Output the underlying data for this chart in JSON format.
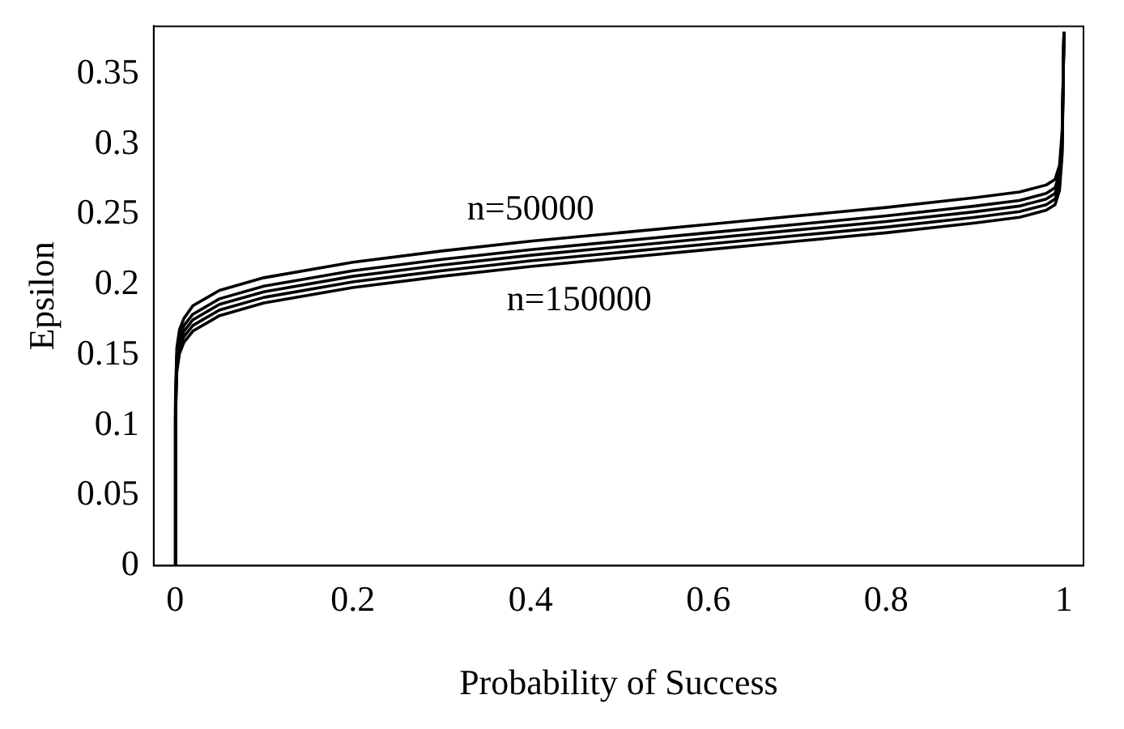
{
  "chart_data": {
    "type": "line",
    "xlabel": "Probability of Success",
    "ylabel": "Epsilon",
    "x": [
      0,
      0.0005,
      0.002,
      0.005,
      0.01,
      0.02,
      0.05,
      0.1,
      0.2,
      0.3,
      0.4,
      0.5,
      0.6,
      0.7,
      0.8,
      0.9,
      0.95,
      0.98,
      0.99,
      0.995,
      0.998,
      1
    ],
    "series": [
      {
        "name": "n=50000",
        "color": "#000000",
        "values": [
          0,
          0.12,
          0.155,
          0.168,
          0.176,
          0.185,
          0.196,
          0.205,
          0.216,
          0.224,
          0.231,
          0.237,
          0.243,
          0.249,
          0.255,
          0.262,
          0.266,
          0.271,
          0.275,
          0.285,
          0.31,
          0.38
        ]
      },
      {
        "color": "#000000",
        "values": [
          0,
          0.115,
          0.15,
          0.163,
          0.171,
          0.179,
          0.19,
          0.199,
          0.21,
          0.218,
          0.225,
          0.231,
          0.237,
          0.243,
          0.249,
          0.256,
          0.26,
          0.265,
          0.269,
          0.279,
          0.305,
          0.38
        ]
      },
      {
        "color": "#000000",
        "values": [
          0,
          0.111,
          0.146,
          0.159,
          0.167,
          0.175,
          0.186,
          0.195,
          0.206,
          0.214,
          0.221,
          0.227,
          0.233,
          0.239,
          0.245,
          0.252,
          0.256,
          0.261,
          0.265,
          0.275,
          0.301,
          0.38
        ]
      },
      {
        "color": "#000000",
        "values": [
          0,
          0.107,
          0.142,
          0.155,
          0.163,
          0.171,
          0.182,
          0.191,
          0.202,
          0.21,
          0.217,
          0.223,
          0.229,
          0.235,
          0.241,
          0.248,
          0.252,
          0.257,
          0.261,
          0.271,
          0.297,
          0.38
        ]
      },
      {
        "name": "n=150000",
        "color": "#000000",
        "values": [
          0,
          0.103,
          0.138,
          0.151,
          0.159,
          0.167,
          0.178,
          0.187,
          0.198,
          0.206,
          0.213,
          0.219,
          0.225,
          0.231,
          0.237,
          0.244,
          0.248,
          0.253,
          0.257,
          0.267,
          0.293,
          0.38
        ]
      }
    ],
    "xlim": [
      -0.024,
      1.022
    ],
    "ylim": [
      0,
      0.384
    ],
    "xticks": [
      0,
      0.2,
      0.4,
      0.6,
      0.8,
      1
    ],
    "yticks": [
      0,
      0.05,
      0.1,
      0.15,
      0.2,
      0.25,
      0.3,
      0.35
    ],
    "grid": false,
    "legend": false,
    "marker": "none",
    "line_style": "solid"
  }
}
